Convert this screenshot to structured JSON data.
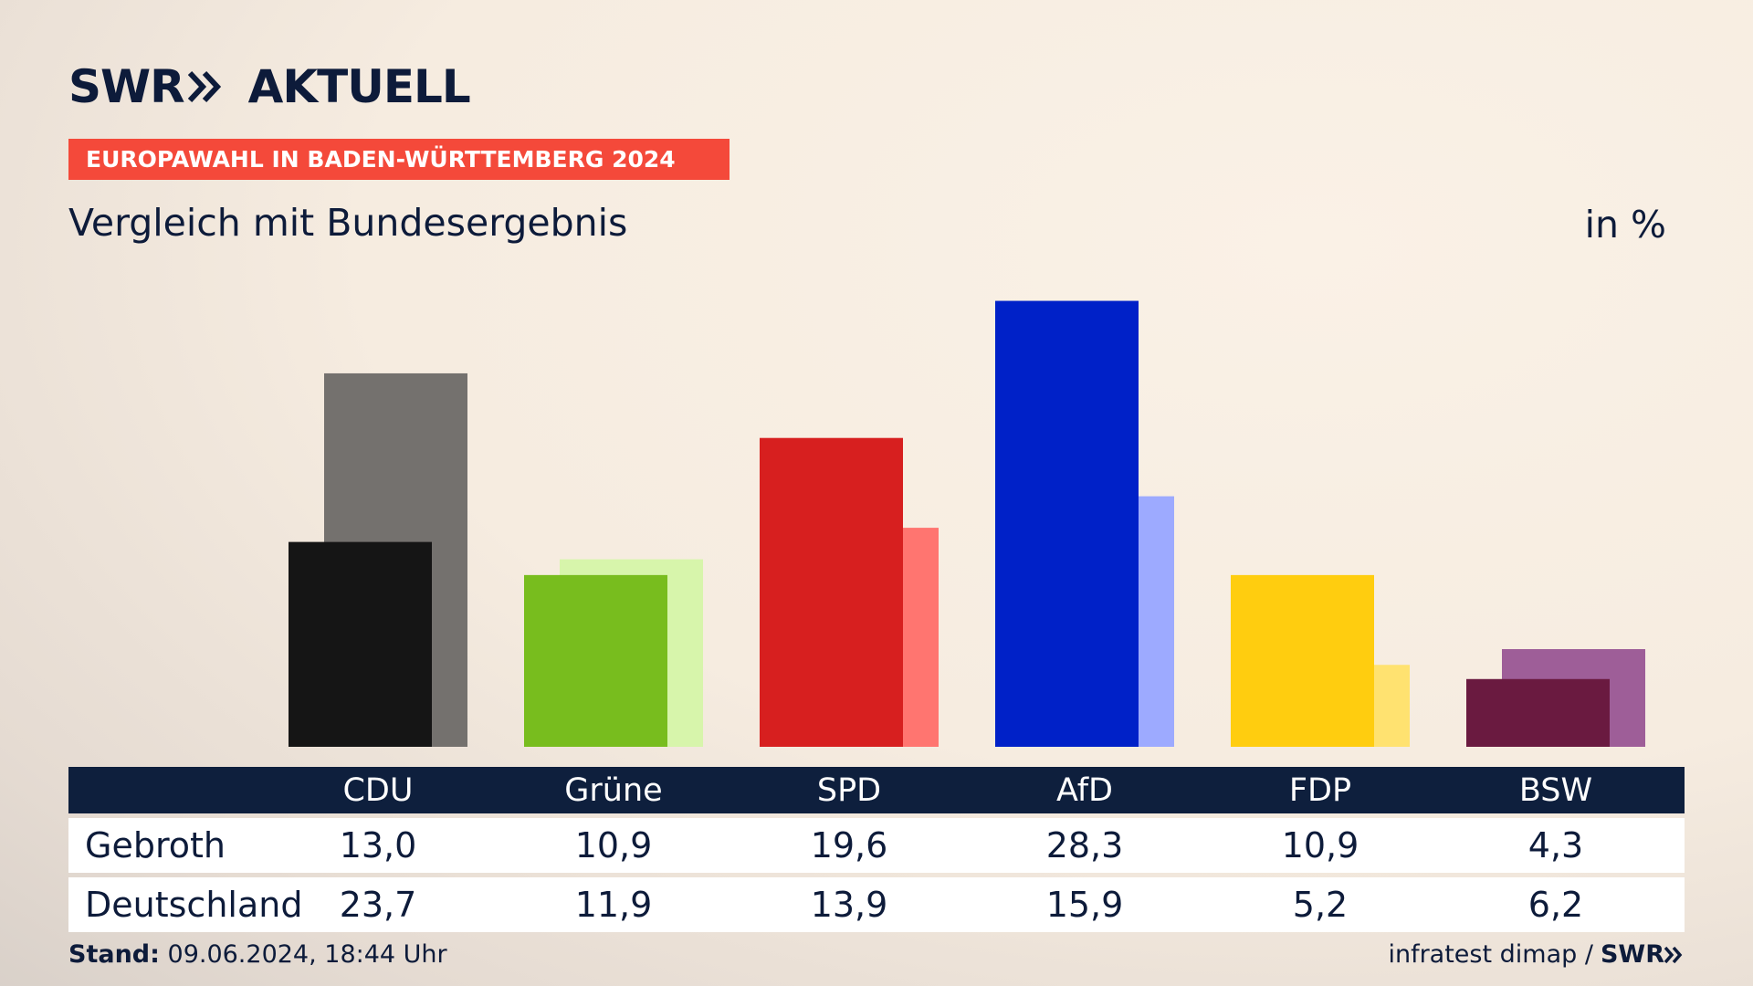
{
  "header": {
    "logo_text": "SWR",
    "logo_suffix": "AKTUELL",
    "ribbon": "EUROPAWAHL IN BADEN-WÜRTTEMBERG 2024",
    "subtitle": "Vergleich mit Bundesergebnis",
    "unit": "in %"
  },
  "colors": {
    "ribbon": "#f4493a",
    "table_header": "#0e1f3d",
    "text": "#0d1b3a"
  },
  "chart_data": {
    "type": "bar",
    "categories": [
      "CDU",
      "Grüne",
      "SPD",
      "AfD",
      "FDP",
      "BSW"
    ],
    "series": [
      {
        "name": "Gebroth",
        "values": [
          13.0,
          10.9,
          19.6,
          28.3,
          10.9,
          4.3
        ],
        "colors": [
          "#151515",
          "#78bd1e",
          "#d71f1f",
          "#0021c8",
          "#ffcd0f",
          "#6a1a40"
        ]
      },
      {
        "name": "Deutschland",
        "values": [
          23.7,
          11.9,
          13.9,
          15.9,
          5.2,
          6.2
        ],
        "colors": [
          "#74716e",
          "#d7f5ab",
          "#ff7570",
          "#9daaff",
          "#ffe270",
          "#9e5e98"
        ]
      }
    ],
    "ylim": [
      0,
      30
    ]
  },
  "table": {
    "headers": [
      "CDU",
      "Grüne",
      "SPD",
      "AfD",
      "FDP",
      "BSW"
    ],
    "rows": [
      {
        "label": "Gebroth",
        "values": [
          "13,0",
          "10,9",
          "19,6",
          "28,3",
          "10,9",
          "4,3"
        ]
      },
      {
        "label": "Deutschland",
        "values": [
          "23,7",
          "11,9",
          "13,9",
          "15,9",
          "5,2",
          "6,2"
        ]
      }
    ]
  },
  "footer": {
    "stand_label": "Stand:",
    "stand_value": "09.06.2024, 18:44 Uhr",
    "source": "infratest dimap /",
    "source_logo": "SWR"
  }
}
